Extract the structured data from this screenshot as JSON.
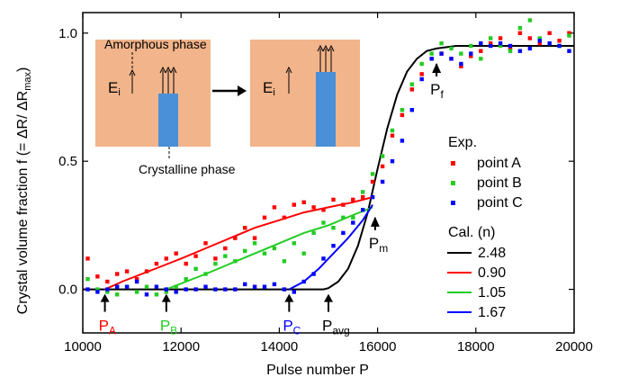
{
  "chart_data": {
    "type": "scatter",
    "title": "",
    "xlabel": "Pulse number P",
    "ylabel_main": "Crystal volume fraction f  (= ΔR/ ΔR",
    "ylabel_sub": "max",
    "ylabel_close": ")",
    "xlim": [
      10000,
      20000
    ],
    "ylim": [
      -0.17,
      1.08
    ],
    "xticks": [
      10000,
      12000,
      14000,
      16000,
      18000,
      20000
    ],
    "yticks": [
      0.0,
      0.5,
      1.0
    ],
    "xtick_labels": [
      "10000",
      "12000",
      "14000",
      "16000",
      "18000",
      "20000"
    ],
    "ytick_labels": [
      "0.0",
      "0.5",
      "1.0"
    ],
    "grid": false,
    "legend": {
      "position": "right",
      "exp_title": "Exp.",
      "exp_items": [
        {
          "label": "point A",
          "color": "#ff0000"
        },
        {
          "label": "point B",
          "color": "#22cc22"
        },
        {
          "label": "point C",
          "color": "#0000ff"
        }
      ],
      "cal_title": "Cal. (n)",
      "cal_items": [
        {
          "label": "2.48",
          "color": "#000000"
        },
        {
          "label": "0.90",
          "color": "#ff0000"
        },
        {
          "label": "1.05",
          "color": "#22cc22"
        },
        {
          "label": "1.67",
          "color": "#0000ff"
        }
      ]
    },
    "scatter_series": [
      {
        "name": "point A",
        "color": "#ff0000",
        "points": [
          [
            10100,
            0.12
          ],
          [
            10300,
            0.05
          ],
          [
            10500,
            0.03
          ],
          [
            10700,
            0.06
          ],
          [
            10900,
            0.07
          ],
          [
            11100,
            0.04
          ],
          [
            11300,
            0.07
          ],
          [
            11500,
            0.1
          ],
          [
            11700,
            0.12
          ],
          [
            11900,
            0.14
          ],
          [
            12100,
            0.1
          ],
          [
            12300,
            0.13
          ],
          [
            12500,
            0.18
          ],
          [
            12700,
            0.12
          ],
          [
            12900,
            0.16
          ],
          [
            13100,
            0.2
          ],
          [
            13300,
            0.24
          ],
          [
            13500,
            0.2
          ],
          [
            13700,
            0.28
          ],
          [
            13900,
            0.32
          ],
          [
            14100,
            0.28
          ],
          [
            14300,
            0.33
          ],
          [
            14500,
            0.34
          ],
          [
            14700,
            0.32
          ],
          [
            14900,
            0.31
          ],
          [
            15100,
            0.35
          ],
          [
            15300,
            0.33
          ],
          [
            15500,
            0.35
          ],
          [
            15700,
            0.36
          ],
          [
            15900,
            0.42
          ],
          [
            16100,
            0.48
          ],
          [
            16300,
            0.6
          ],
          [
            16500,
            0.68
          ],
          [
            16700,
            0.78
          ],
          [
            16900,
            0.84
          ],
          [
            17100,
            0.9
          ],
          [
            17300,
            0.92
          ],
          [
            17500,
            0.9
          ],
          [
            17700,
            0.87
          ],
          [
            17900,
            0.91
          ],
          [
            18100,
            0.93
          ],
          [
            18300,
            0.96
          ],
          [
            18500,
            0.98
          ],
          [
            18700,
            0.94
          ],
          [
            18900,
            1.0
          ],
          [
            19100,
            0.98
          ],
          [
            19300,
            0.96
          ],
          [
            19500,
            1.0
          ],
          [
            19700,
            0.97
          ],
          [
            19900,
            1.0
          ]
        ]
      },
      {
        "name": "point B",
        "color": "#22cc22",
        "points": [
          [
            10100,
            0.04
          ],
          [
            10300,
            0.0
          ],
          [
            10500,
            -0.01
          ],
          [
            10700,
            -0.02
          ],
          [
            10900,
            0.01
          ],
          [
            11100,
            -0.01
          ],
          [
            11300,
            0.01
          ],
          [
            11500,
            -0.02
          ],
          [
            11700,
            -0.01
          ],
          [
            11900,
            0.01
          ],
          [
            12100,
            0.04
          ],
          [
            12300,
            0.08
          ],
          [
            12500,
            0.06
          ],
          [
            12700,
            0.1
          ],
          [
            12900,
            0.13
          ],
          [
            13100,
            0.11
          ],
          [
            13300,
            0.15
          ],
          [
            13500,
            0.18
          ],
          [
            13700,
            0.14
          ],
          [
            13900,
            0.16
          ],
          [
            14100,
            0.11
          ],
          [
            14300,
            0.18
          ],
          [
            14500,
            0.14
          ],
          [
            14700,
            0.22
          ],
          [
            14900,
            0.26
          ],
          [
            15100,
            0.24
          ],
          [
            15300,
            0.28
          ],
          [
            15500,
            0.28
          ],
          [
            15700,
            0.38
          ],
          [
            15900,
            0.45
          ],
          [
            16100,
            0.52
          ],
          [
            16300,
            0.62
          ],
          [
            16500,
            0.7
          ],
          [
            16700,
            0.8
          ],
          [
            16900,
            0.88
          ],
          [
            17100,
            0.92
          ],
          [
            17300,
            0.96
          ],
          [
            17500,
            0.94
          ],
          [
            17700,
            0.92
          ],
          [
            17900,
            0.95
          ],
          [
            18100,
            0.9
          ],
          [
            18300,
            0.98
          ],
          [
            18500,
            0.95
          ],
          [
            18700,
            0.93
          ],
          [
            18900,
            1.02
          ],
          [
            19100,
            1.05
          ],
          [
            19300,
            0.98
          ],
          [
            19500,
            0.96
          ],
          [
            19700,
            0.95
          ],
          [
            19900,
            0.99
          ]
        ]
      },
      {
        "name": "point C",
        "color": "#0000ff",
        "points": [
          [
            10100,
            0.0
          ],
          [
            10300,
            -0.01
          ],
          [
            10500,
            0.0
          ],
          [
            10700,
            0.01
          ],
          [
            10900,
            0.01
          ],
          [
            11100,
            0.03
          ],
          [
            11300,
            -0.02
          ],
          [
            11500,
            0.01
          ],
          [
            11700,
            0.0
          ],
          [
            11900,
            -0.01
          ],
          [
            12100,
            0.0
          ],
          [
            12300,
            0.0
          ],
          [
            12500,
            0.01
          ],
          [
            12700,
            0.0
          ],
          [
            12900,
            0.0
          ],
          [
            13100,
            0.0
          ],
          [
            13300,
            0.02
          ],
          [
            13500,
            0.01
          ],
          [
            13700,
            0.01
          ],
          [
            13900,
            0.02
          ],
          [
            14100,
            0.0
          ],
          [
            14300,
            -0.01
          ],
          [
            14500,
            0.03
          ],
          [
            14700,
            0.06
          ],
          [
            14900,
            0.12
          ],
          [
            15100,
            0.17
          ],
          [
            15300,
            0.22
          ],
          [
            15500,
            0.26
          ],
          [
            15700,
            0.31
          ],
          [
            15900,
            0.36
          ],
          [
            16100,
            0.42
          ],
          [
            16300,
            0.5
          ],
          [
            16500,
            0.58
          ],
          [
            16700,
            0.7
          ],
          [
            16900,
            0.82
          ],
          [
            17100,
            0.9
          ],
          [
            17300,
            0.92
          ],
          [
            17500,
            0.9
          ],
          [
            17700,
            0.88
          ],
          [
            17900,
            0.92
          ],
          [
            18100,
            0.96
          ],
          [
            18300,
            0.95
          ],
          [
            18500,
            0.96
          ],
          [
            18700,
            0.95
          ],
          [
            18900,
            0.93
          ],
          [
            19100,
            0.94
          ],
          [
            19300,
            0.97
          ],
          [
            19500,
            0.96
          ],
          [
            19700,
            0.95
          ],
          [
            19900,
            0.93
          ]
        ]
      }
    ],
    "fit_lines": [
      {
        "name": "2.48",
        "color": "#000000",
        "points": [
          [
            10000,
            0
          ],
          [
            14900,
            0
          ],
          [
            15000,
            0.005
          ],
          [
            15200,
            0.03
          ],
          [
            15400,
            0.08
          ],
          [
            15600,
            0.17
          ],
          [
            15800,
            0.3
          ],
          [
            16000,
            0.47
          ],
          [
            16200,
            0.63
          ],
          [
            16400,
            0.76
          ],
          [
            16600,
            0.85
          ],
          [
            16800,
            0.9
          ],
          [
            17000,
            0.93
          ],
          [
            17200,
            0.94
          ],
          [
            17600,
            0.95
          ],
          [
            18000,
            0.95
          ],
          [
            20000,
            0.95
          ]
        ]
      },
      {
        "name": "0.90",
        "color": "#ff0000",
        "points": [
          [
            10450,
            0
          ],
          [
            10800,
            0.03
          ],
          [
            11200,
            0.06
          ],
          [
            11600,
            0.09
          ],
          [
            12000,
            0.12
          ],
          [
            12500,
            0.16
          ],
          [
            13000,
            0.2
          ],
          [
            13500,
            0.24
          ],
          [
            14000,
            0.27
          ],
          [
            14500,
            0.3
          ],
          [
            15000,
            0.32
          ],
          [
            15500,
            0.34
          ],
          [
            15900,
            0.36
          ]
        ]
      },
      {
        "name": "1.05",
        "color": "#22cc22",
        "points": [
          [
            11700,
            0
          ],
          [
            12100,
            0.03
          ],
          [
            12500,
            0.06
          ],
          [
            13000,
            0.1
          ],
          [
            13500,
            0.14
          ],
          [
            14000,
            0.18
          ],
          [
            14500,
            0.22
          ],
          [
            15000,
            0.25
          ],
          [
            15500,
            0.29
          ],
          [
            15900,
            0.32
          ]
        ]
      },
      {
        "name": "1.67",
        "color": "#0000ff",
        "points": [
          [
            14200,
            0
          ],
          [
            14500,
            0.03
          ],
          [
            14800,
            0.08
          ],
          [
            15100,
            0.14
          ],
          [
            15400,
            0.2
          ],
          [
            15700,
            0.27
          ],
          [
            15900,
            0.33
          ]
        ]
      }
    ],
    "markers": [
      {
        "label": "P",
        "sub": "A",
        "color": "#ff0000",
        "x": 10450,
        "direction": "up"
      },
      {
        "label": "P",
        "sub": "B",
        "color": "#22cc22",
        "x": 11700,
        "direction": "up"
      },
      {
        "label": "P",
        "sub": "C",
        "color": "#0000ff",
        "x": 14200,
        "direction": "up"
      },
      {
        "label": "P",
        "sub": "avg",
        "color": "#000000",
        "x": 15000,
        "direction": "up"
      },
      {
        "label": "P",
        "sub": "m",
        "color": "#000000",
        "x": 15950,
        "direction": "down"
      },
      {
        "label": "P",
        "sub": "f",
        "color": "#000000",
        "x": 17200,
        "direction": "down"
      }
    ],
    "inset": {
      "amorphous_label": "Amorphous phase",
      "crystalline_label": "Crystalline phase",
      "field_label": "E",
      "field_sub": "i",
      "colors": {
        "background": "#f2b48a",
        "crystal": "#4a90d9"
      }
    }
  }
}
